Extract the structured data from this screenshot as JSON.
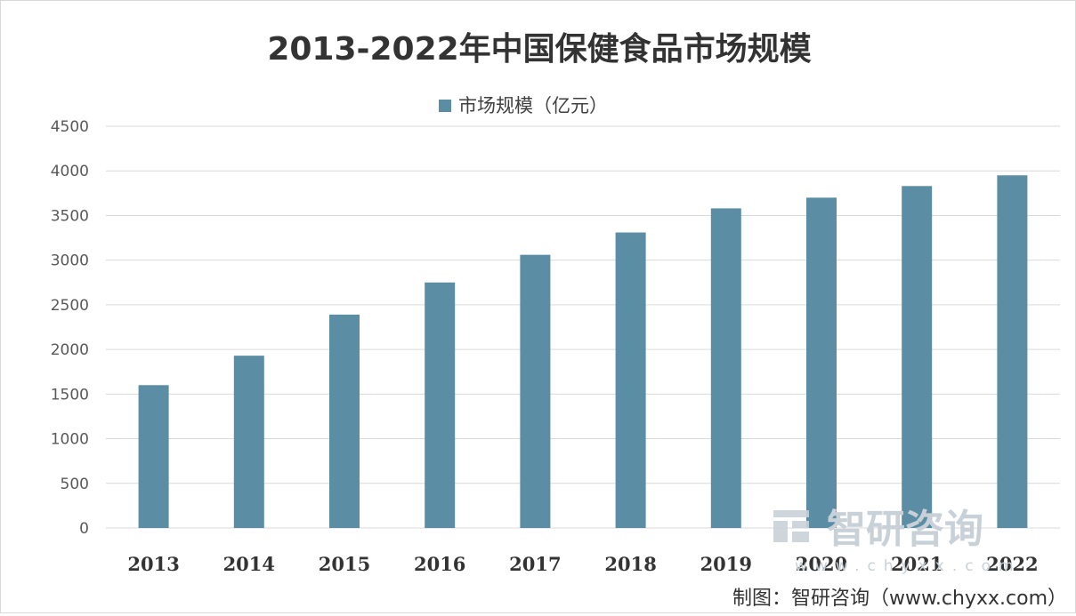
{
  "title": "2013-2022年中国保健食品市场规模",
  "legend_label": "市场规模（亿元）",
  "source": "制图：智研咨询（www.chyxx.com）",
  "watermark": {
    "brand": "智研咨询",
    "url": "www.chyxx.com"
  },
  "colors": {
    "bar": "#5b8ea5",
    "grid": "#d9d9d9",
    "watermark": "#c9d1d8"
  },
  "chart_data": {
    "type": "bar",
    "title": "2013-2022年中国保健食品市场规模",
    "xlabel": "",
    "ylabel": "",
    "categories": [
      "2013",
      "2014",
      "2015",
      "2016",
      "2017",
      "2018",
      "2019",
      "2020",
      "2021",
      "2022"
    ],
    "series": [
      {
        "name": "市场规模（亿元）",
        "values": [
          1600,
          1930,
          2390,
          2750,
          3060,
          3310,
          3580,
          3700,
          3830,
          3950
        ]
      }
    ],
    "ylim": [
      0,
      4500
    ],
    "yticks": [
      0,
      500,
      1000,
      1500,
      2000,
      2500,
      3000,
      3500,
      4000,
      4500
    ],
    "grid": true,
    "legend_position": "top-center"
  }
}
